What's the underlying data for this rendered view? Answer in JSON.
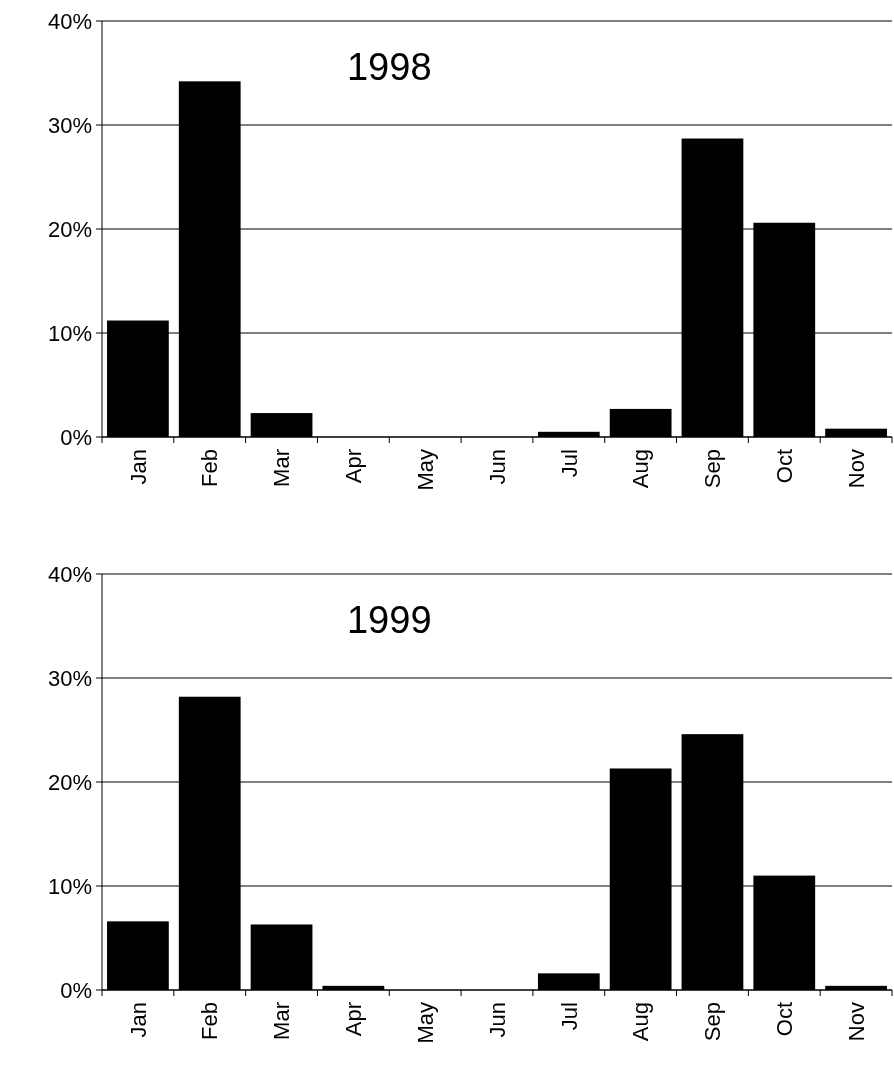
{
  "chart_data": [
    {
      "type": "bar",
      "title": "1998",
      "categories": [
        "Jan",
        "Feb",
        "Mar",
        "Apr",
        "May",
        "Jun",
        "Jul",
        "Aug",
        "Sep",
        "Oct",
        "Nov"
      ],
      "values": [
        11.2,
        34.2,
        2.3,
        0,
        0,
        0,
        0.5,
        2.7,
        28.7,
        20.6,
        0.8
      ],
      "color": "#000000",
      "ylim": [
        0,
        40
      ],
      "yticks": [
        {
          "value": 0,
          "label": "0%"
        },
        {
          "value": 10,
          "label": "10%"
        },
        {
          "value": 20,
          "label": "20%"
        },
        {
          "value": 30,
          "label": "30%"
        },
        {
          "value": 40,
          "label": "40%"
        }
      ],
      "grid": "y"
    },
    {
      "type": "bar",
      "title": "1999",
      "categories": [
        "Jan",
        "Feb",
        "Mar",
        "Apr",
        "May",
        "Jun",
        "Jul",
        "Aug",
        "Sep",
        "Oct",
        "Nov"
      ],
      "values": [
        6.6,
        28.2,
        6.3,
        0.4,
        0,
        0,
        1.6,
        21.3,
        24.6,
        11.0,
        0.4
      ],
      "color": "#000000",
      "ylim": [
        0,
        40
      ],
      "yticks": [
        {
          "value": 0,
          "label": "0%"
        },
        {
          "value": 10,
          "label": "10%"
        },
        {
          "value": 20,
          "label": "20%"
        },
        {
          "value": 30,
          "label": "30%"
        },
        {
          "value": 40,
          "label": "40%"
        }
      ],
      "grid": "y"
    }
  ]
}
